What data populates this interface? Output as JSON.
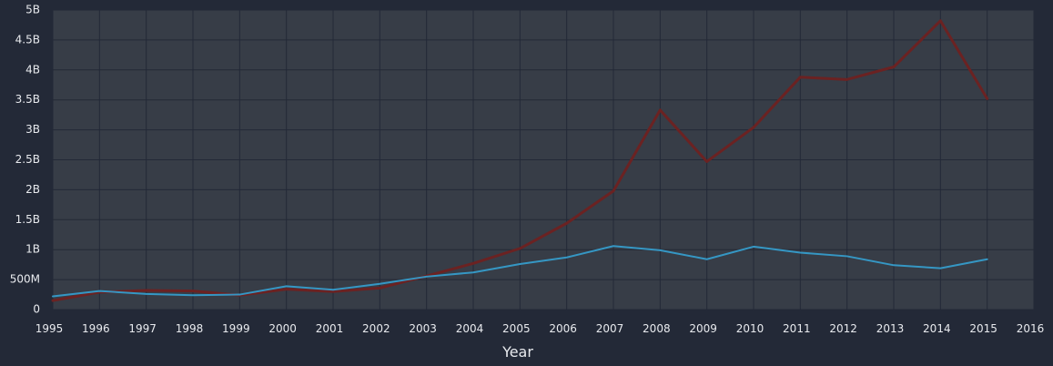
{
  "chart_data": {
    "type": "line",
    "title": "",
    "xlabel": "Year",
    "ylabel": "",
    "x": [
      1995,
      1996,
      1997,
      1998,
      1999,
      2000,
      2001,
      2002,
      2003,
      2004,
      2005,
      2006,
      2007,
      2008,
      2009,
      2010,
      2011,
      2012,
      2013,
      2014,
      2015
    ],
    "xlim": [
      1995,
      2016
    ],
    "ylim": [
      0,
      5000000000
    ],
    "x_ticks": [
      "1995",
      "1996",
      "1997",
      "1998",
      "1999",
      "2000",
      "2001",
      "2002",
      "2003",
      "2004",
      "2005",
      "2006",
      "2007",
      "2008",
      "2009",
      "2010",
      "2011",
      "2012",
      "2013",
      "2014",
      "2015",
      "2016"
    ],
    "x_tick_values": [
      1995,
      1996,
      1997,
      1998,
      1999,
      2000,
      2001,
      2002,
      2003,
      2004,
      2005,
      2006,
      2007,
      2008,
      2009,
      2010,
      2011,
      2012,
      2013,
      2014,
      2015,
      2016
    ],
    "y_ticks": [
      "0",
      "500M",
      "1B",
      "1.5B",
      "2B",
      "2.5B",
      "3B",
      "3.5B",
      "4B",
      "4.5B",
      "5B"
    ],
    "y_tick_values": [
      0,
      500000000,
      1000000000,
      1500000000,
      2000000000,
      2500000000,
      3000000000,
      3500000000,
      4000000000,
      4500000000,
      5000000000
    ],
    "grid": true,
    "legend": "none",
    "background_color": "#232937",
    "plot_background_color": "#373d47",
    "series": [
      {
        "color": "#6b2222",
        "values": [
          150000000,
          290000000,
          320000000,
          310000000,
          240000000,
          340000000,
          300000000,
          360000000,
          560000000,
          770000000,
          1020000000,
          1440000000,
          1980000000,
          3330000000,
          2470000000,
          3040000000,
          3880000000,
          3840000000,
          4050000000,
          4820000000,
          3520000000
        ]
      },
      {
        "color": "#3597c4",
        "values": [
          220000000,
          310000000,
          260000000,
          240000000,
          250000000,
          390000000,
          330000000,
          430000000,
          550000000,
          620000000,
          760000000,
          870000000,
          1060000000,
          990000000,
          840000000,
          1050000000,
          950000000,
          890000000,
          740000000,
          690000000,
          840000000
        ]
      }
    ]
  }
}
